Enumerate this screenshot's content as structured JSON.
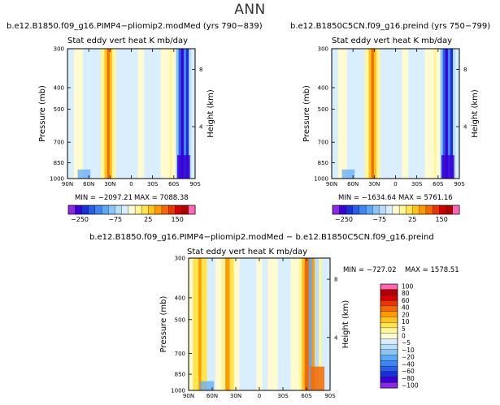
{
  "page_title": "ANN",
  "colors": {
    "levels": [
      "#8a2be2",
      "#3b00d8",
      "#1a2fd6",
      "#2a5ee8",
      "#3f86f2",
      "#5aa8f8",
      "#8cc4f6",
      "#b8def8",
      "#d9efff",
      "#fffbd0",
      "#fff59a",
      "#ffe44d",
      "#ffc21a",
      "#ff9a00",
      "#f46a00",
      "#e83800",
      "#d40000",
      "#b00000",
      "#ff66b3"
    ]
  },
  "chart_data": [
    {
      "type": "heatmap",
      "title": "b.e12.B1850.f09_g16.PIMP4−pliomip2.modMed  (yrs 790−839)",
      "subtitle": "Stat eddy vert heat     K mb/day",
      "xlabel": "",
      "ylabel": "Pressure  (mb)",
      "ylabel_right": "Height  (km)",
      "x_ticks": [
        "90N",
        "60N",
        "30N",
        "0",
        "30S",
        "60S",
        "90S"
      ],
      "y_ticks": [
        "300",
        "400",
        "500",
        "700",
        "850",
        "1000"
      ],
      "y_ticks_right": [
        "8",
        "4"
      ],
      "min_label": "MIN = −2097.21",
      "max_label": "MAX = 7088.38",
      "colorbar_labels": [
        "−250",
        "−75",
        "25",
        "150"
      ]
    },
    {
      "type": "heatmap",
      "title": "b.e12.B1850C5CN.f09_g16.preind  (yrs 750−799)",
      "subtitle": "Stat eddy vert heat     K mb/day",
      "xlabel": "",
      "ylabel": "Pressure  (mb)",
      "ylabel_right": "Height  (km)",
      "x_ticks": [
        "90N",
        "60N",
        "30N",
        "0",
        "30S",
        "60S",
        "90S"
      ],
      "y_ticks": [
        "300",
        "400",
        "500",
        "700",
        "850",
        "1000"
      ],
      "y_ticks_right": [
        "8",
        "4"
      ],
      "min_label": "MIN = −1634.64",
      "max_label": "MAX = 5761.16",
      "colorbar_labels": [
        "−250",
        "−75",
        "25",
        "150"
      ]
    },
    {
      "type": "heatmap",
      "title": "b.e12.B1850.f09_g16.PIMP4−pliomip2.modMed − b.e12.B1850C5CN.f09_g16.preind",
      "subtitle": "Stat eddy vert heat     K mb/day",
      "xlabel": "",
      "ylabel": "Pressure  (mb)",
      "ylabel_right": "Height  (km)",
      "x_ticks": [
        "90N",
        "60N",
        "30N",
        "0",
        "30S",
        "60S",
        "90S"
      ],
      "y_ticks": [
        "300",
        "400",
        "500",
        "700",
        "850",
        "1000"
      ],
      "y_ticks_right": [
        "8",
        "4"
      ],
      "min_label": "MIN = −727.02",
      "max_label": "MAX = 1578.51",
      "colorbar_labels": [
        "100",
        "80",
        "60",
        "40",
        "20",
        "10",
        "5",
        "0",
        "−5",
        "−10",
        "−20",
        "−40",
        "−60",
        "−80",
        "−100"
      ]
    }
  ]
}
